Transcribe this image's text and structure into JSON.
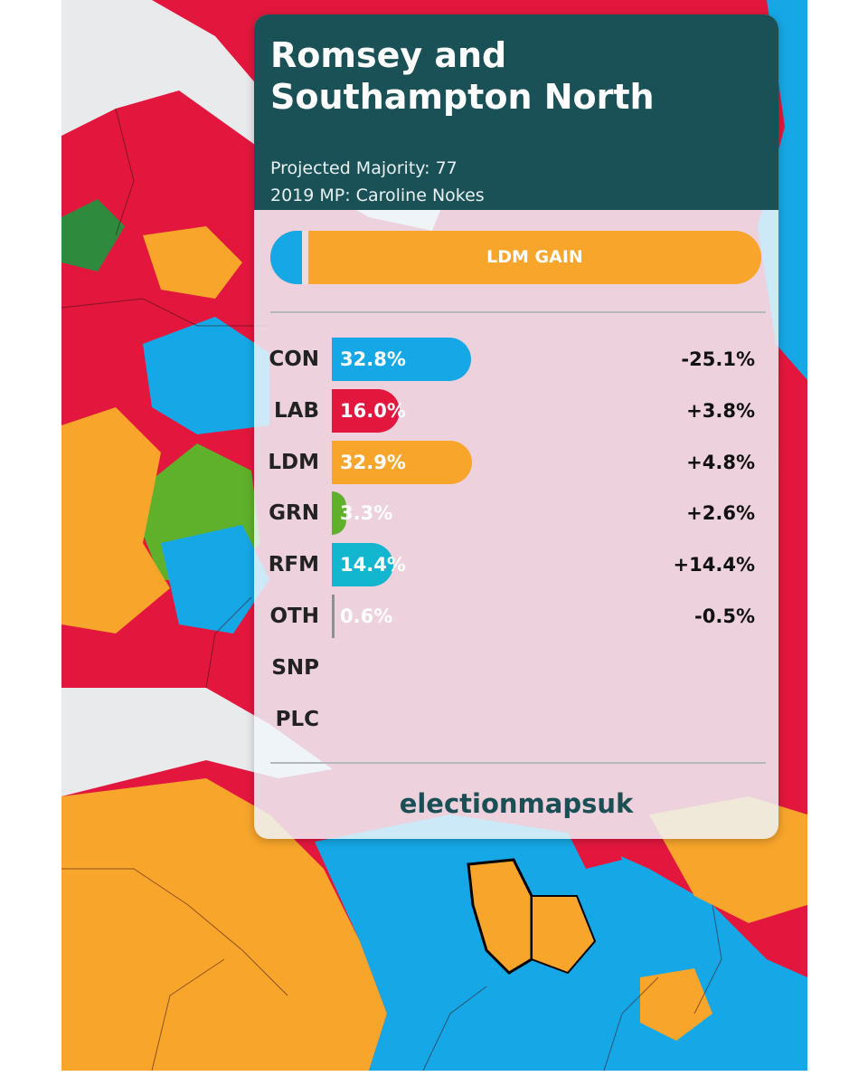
{
  "header": {
    "title": "Romsey and Southampton North",
    "majority_line": "Projected Majority: 77",
    "mp_line": "2019 MP: Caroline Nokes"
  },
  "result_banner": {
    "label": "LDM GAIN",
    "colors": {
      "con": "#16a8e6",
      "ldm": "#f7a52b"
    }
  },
  "brand": "electionmapsuk",
  "chart_data": {
    "type": "bar",
    "orientation": "horizontal",
    "title": "",
    "categories": [
      "CON",
      "LAB",
      "LDM",
      "GRN",
      "RFM",
      "OTH",
      "SNP",
      "PLC"
    ],
    "values": [
      32.8,
      16.0,
      32.9,
      3.3,
      14.4,
      0.6,
      null,
      null
    ],
    "value_labels": [
      "32.8%",
      "16.0%",
      "32.9%",
      "3.3%",
      "14.4%",
      "0.6%",
      "",
      ""
    ],
    "changes": [
      -25.1,
      3.8,
      4.8,
      2.6,
      14.4,
      -0.5,
      null,
      null
    ],
    "change_labels": [
      "-25.1%",
      "+3.8%",
      "+4.8%",
      "+2.6%",
      "+14.4%",
      "-0.5%",
      "",
      ""
    ],
    "colors": [
      "#16a8e6",
      "#e3173e",
      "#f7a52b",
      "#5fb12c",
      "#12b6cf",
      "#8f8f8f",
      "#fdf38e",
      "#008142"
    ],
    "xlim": [
      0,
      50
    ],
    "grid": false
  }
}
